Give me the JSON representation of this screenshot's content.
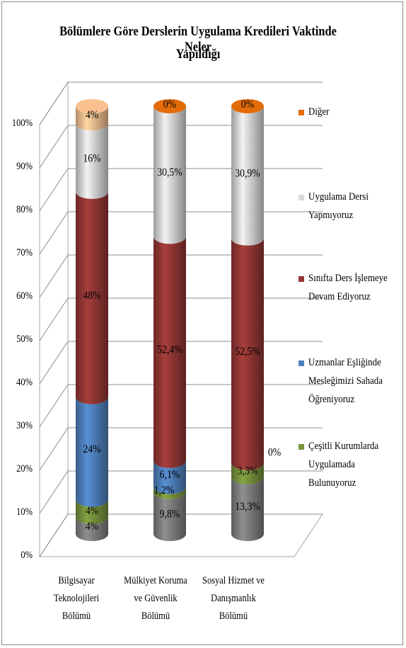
{
  "chart_data": {
    "type": "bar",
    "stacked": true,
    "three_d": true,
    "title": "Bölümlere Göre Derslerin Uygulama Kredileri Vaktinde Neler Yapıldığı",
    "title_lines": [
      "Bölümlere Göre Derslerin Uygulama Kredileri Vaktinde Neler",
      "Yapıldığı"
    ],
    "categories": [
      "Bilgisayar Teknolojileri Bölümü",
      "Mülkiyet Koruma ve Güvenlik Bölümü",
      "Sosyal Hizmet ve Danışmanlık Bölümü"
    ],
    "category_lines": [
      "Bilgisayar\nTeknolojileri\nBölümü",
      "Mülkiyet Koruma\nve Güvenlik\nBölümü",
      "Sosyal Hizmet ve\nDanışmanlık\nBölümü"
    ],
    "y_ticks": [
      "0%",
      "10%",
      "20%",
      "30%",
      "40%",
      "50%",
      "60%",
      "70%",
      "80%",
      "90%",
      "100%"
    ],
    "ylim": [
      0,
      100
    ],
    "grid": true,
    "legend_position": "right",
    "series": [
      {
        "name": "",
        "color": "#808080",
        "values": [
          4,
          9.8,
          13.3
        ],
        "labels": [
          "4%",
          "9,8%",
          "13,3%"
        ]
      },
      {
        "name": "Çeşitli Kurumlarda Uygulamada Bulunuyoruz",
        "color": "#77933c",
        "values": [
          4,
          1.2,
          3.3
        ],
        "labels": [
          "4%",
          "1,2%",
          "3,3%"
        ]
      },
      {
        "name": "Uzmanlar Eşliğinde Mesleğimizi Sahada Öğreniyoruz",
        "color": "#4f81bd",
        "values": [
          24,
          6.1,
          0
        ],
        "labels": [
          "24%",
          "6,1%",
          "0%"
        ]
      },
      {
        "name": "Sınıfta Ders İşlemeye Devam Ediyoruz",
        "color": "#953735",
        "values": [
          48,
          52.4,
          52.5
        ],
        "labels": [
          "48%",
          "52,4%",
          "52,5%"
        ]
      },
      {
        "name": "Uygulama Dersi Yapmıyoruz",
        "color": "#d9d9d9",
        "values": [
          16,
          30.5,
          30.9
        ],
        "labels": [
          "16%",
          "30,5%",
          "30,9%"
        ]
      },
      {
        "name": "Diğer",
        "color": "#e36c09",
        "light_color": "#fac090",
        "values": [
          4,
          0,
          0
        ],
        "labels": [
          "4%",
          "0%",
          "0%"
        ]
      }
    ],
    "legend": [
      {
        "text": "Diğer",
        "display": "Diğer",
        "color": "#e36c09"
      },
      {
        "text": "Uygulama Dersi Yapmıyoruz",
        "display": "Uygulama Dersi\nYapmıyoruz",
        "color": "#d9d9d9"
      },
      {
        "text": "Sınıfta Ders İşlemeye Devam Ediyoruz",
        "display": "Sınıfta Ders İşlemeye\nDevam Ediyoruz",
        "color": "#953735"
      },
      {
        "text": "Uzmanlar Eşliğinde Mesleğimizi Sahada Öğreniyoruz",
        "display": "Uzmanlar Eşliğinde\nMesleğimizi Sahada\nÖğreniyoruz",
        "color": "#4f81bd"
      },
      {
        "text": "Çeşitli Kurumlarda Uygulamada Bulunuyoruz",
        "display": "Çeşitli Kurumlarda\nUygulamada\nBulunuyoruz",
        "color": "#77933c"
      }
    ]
  }
}
